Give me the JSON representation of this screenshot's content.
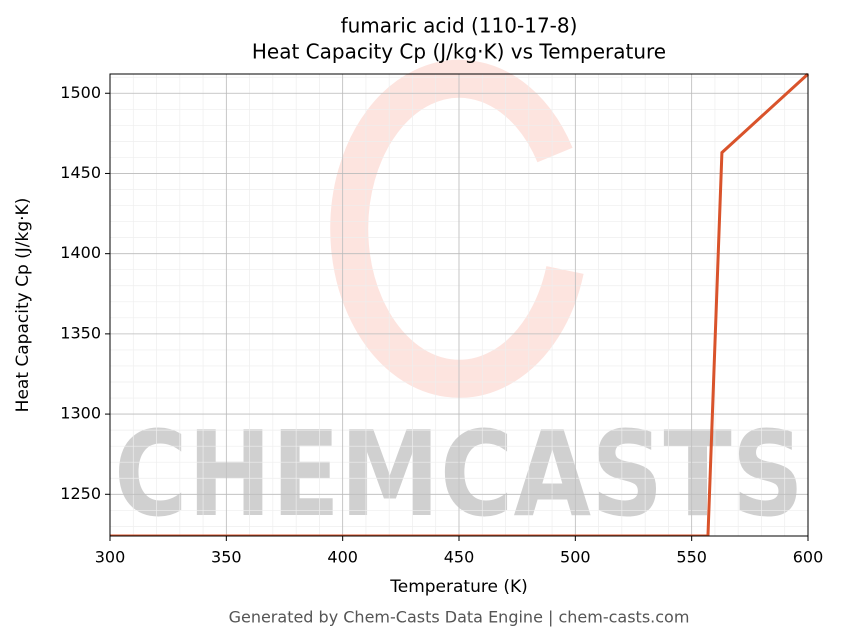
{
  "chart_data": {
    "type": "line",
    "title": "fumaric acid (110-17-8)",
    "subtitle": "Heat Capacity Cp (J/kg·K) vs Temperature",
    "x_label": "Temperature (K)",
    "y_label": "Heat Capacity Cp (J/kg·K)",
    "footer": "Generated by Chem-Casts Data Engine | chem-casts.com",
    "watermark": "CHEMCASTS",
    "x": [
      300,
      557,
      563,
      600
    ],
    "series": [
      {
        "name": "Heat Capacity Cp",
        "color": "#d9532b",
        "values": [
          1224,
          1224,
          1463,
          1512
        ]
      }
    ],
    "xlim": [
      300,
      600
    ],
    "xticks": [
      300,
      350,
      400,
      450,
      500,
      550,
      600
    ],
    "ylim": [
      1224,
      1512
    ],
    "yticks": [
      1250,
      1300,
      1350,
      1400,
      1450,
      1500
    ],
    "grid": true,
    "minor_grid": true
  }
}
